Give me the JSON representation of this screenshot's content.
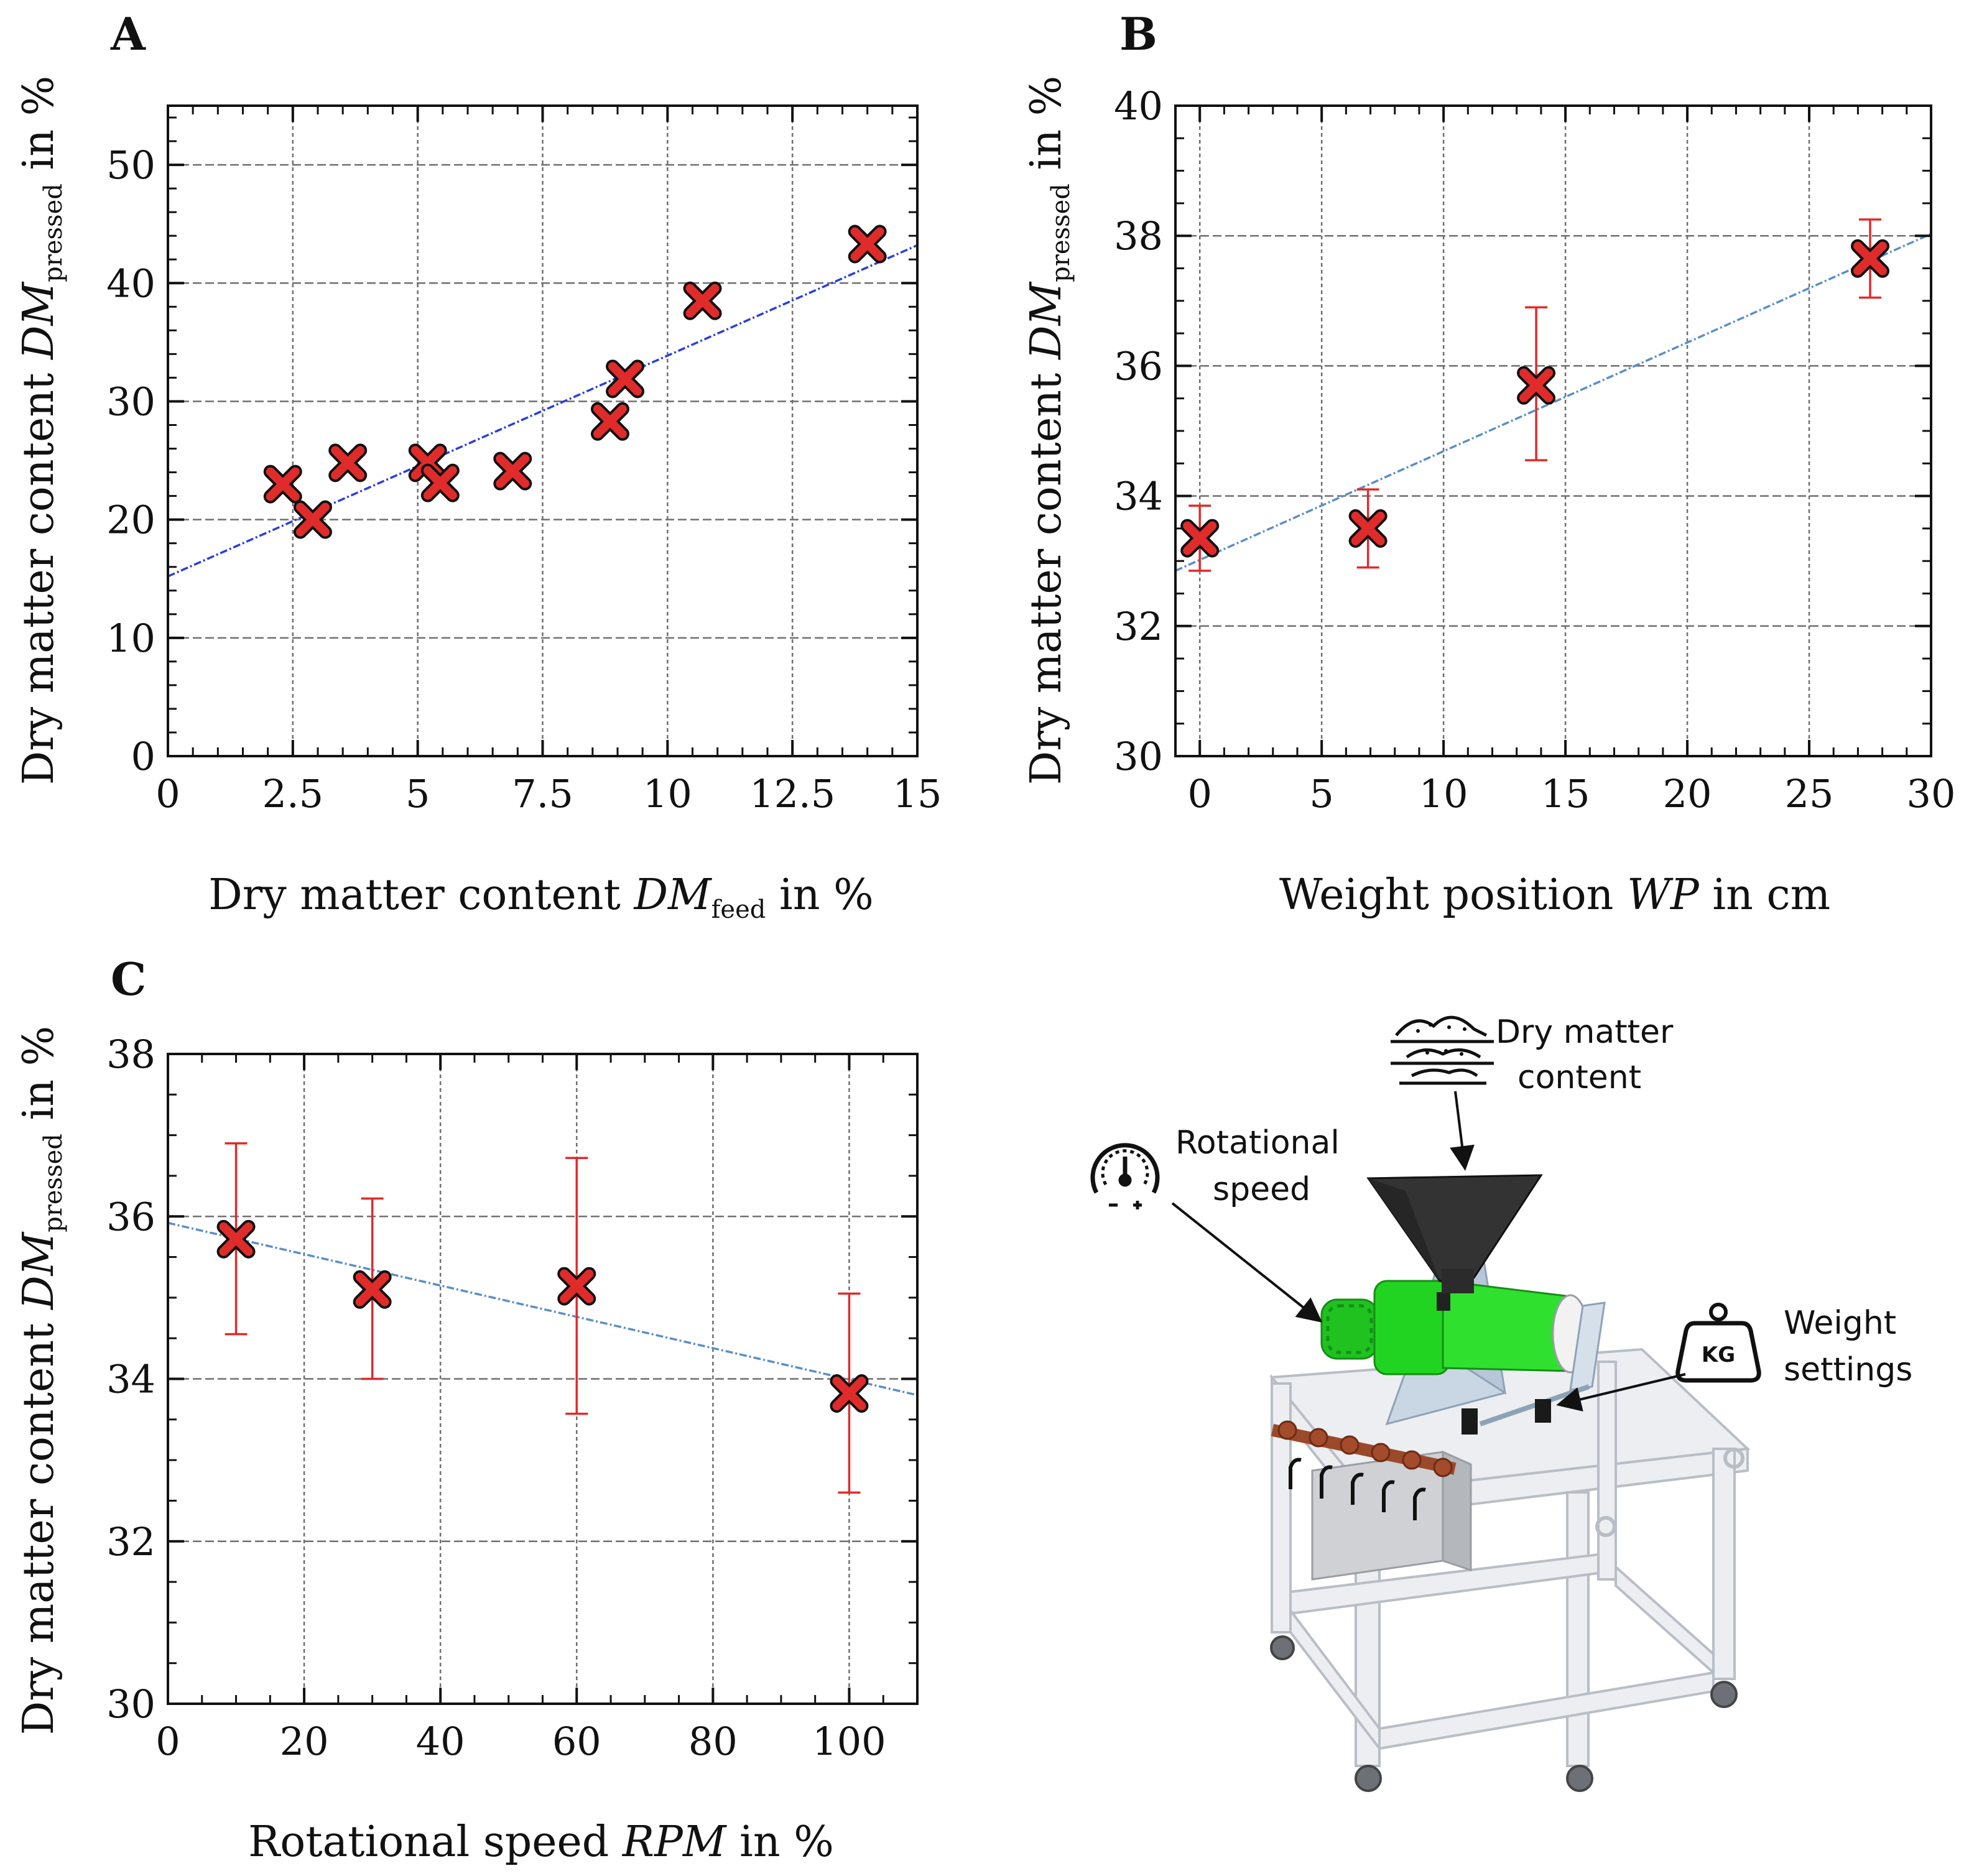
{
  "chart_data": [
    {
      "panel_label": "A",
      "type": "scatter",
      "xlabel_main": "Dry matter content ",
      "xlabel_var": "DM",
      "xlabel_sub": "feed",
      "xlabel_unit": " in %",
      "ylabel_main": "Dry matter content ",
      "ylabel_var": "DM",
      "ylabel_sub": "pressed",
      "ylabel_unit": " in %",
      "xlim": [
        0,
        15
      ],
      "ylim": [
        0,
        55
      ],
      "xticks": [
        0,
        2.5,
        5,
        7.5,
        10,
        12.5,
        15
      ],
      "xtick_labels": [
        "0",
        "2.5",
        "5",
        "7.5",
        "10",
        "12.5",
        "15"
      ],
      "yticks": [
        0,
        10,
        20,
        30,
        40,
        50
      ],
      "ytick_labels": [
        "0",
        "10",
        "20",
        "30",
        "40",
        "50"
      ],
      "x_minor_step": 0.5,
      "y_minor_step": 2,
      "grid": true,
      "points": [
        {
          "x": 2.3,
          "y": 23.0
        },
        {
          "x": 2.9,
          "y": 20.0
        },
        {
          "x": 3.6,
          "y": 24.8
        },
        {
          "x": 5.2,
          "y": 24.8
        },
        {
          "x": 5.45,
          "y": 23.1
        },
        {
          "x": 6.9,
          "y": 24.1
        },
        {
          "x": 8.85,
          "y": 28.3
        },
        {
          "x": 9.15,
          "y": 31.9
        },
        {
          "x": 10.7,
          "y": 38.5
        },
        {
          "x": 14.0,
          "y": 43.3
        }
      ],
      "fit": {
        "x": [
          0,
          15
        ],
        "y": [
          15.2,
          43.2
        ],
        "color": "#2b3de0"
      },
      "marker_color": "#e02b2b"
    },
    {
      "panel_label": "B",
      "type": "scatter",
      "xlabel_main": "Weight position ",
      "xlabel_var": "WP",
      "xlabel_sub": "",
      "xlabel_unit": " in cm",
      "ylabel_main": "Dry matter content ",
      "ylabel_var": "DM",
      "ylabel_sub": "pressed",
      "ylabel_unit": " in %",
      "xlim": [
        -1,
        30
      ],
      "ylim": [
        30,
        40
      ],
      "xticks": [
        0,
        5,
        10,
        15,
        20,
        25,
        30
      ],
      "xtick_labels": [
        "0",
        "5",
        "10",
        "15",
        "20",
        "25",
        "30"
      ],
      "yticks": [
        30,
        32,
        34,
        36,
        38,
        40
      ],
      "ytick_labels": [
        "30",
        "32",
        "34",
        "36",
        "38",
        "40"
      ],
      "x_minor_step": 1,
      "y_minor_step": 0.5,
      "grid": true,
      "points": [
        {
          "x": 0,
          "y": 33.35,
          "err_low": 32.85,
          "err_high": 33.85
        },
        {
          "x": 6.9,
          "y": 33.5,
          "err_low": 32.9,
          "err_high": 34.1
        },
        {
          "x": 13.8,
          "y": 35.7,
          "err_low": 34.55,
          "err_high": 36.9
        },
        {
          "x": 27.5,
          "y": 37.65,
          "err_low": 37.05,
          "err_high": 38.25
        }
      ],
      "fit": {
        "x": [
          -1,
          30
        ],
        "y": [
          32.85,
          38.03
        ],
        "color": "#5a8fc6"
      },
      "marker_color": "#e02b2b"
    },
    {
      "panel_label": "C",
      "type": "scatter",
      "xlabel_main": "Rotational speed ",
      "xlabel_var": "RPM",
      "xlabel_sub": "",
      "xlabel_unit": " in %",
      "ylabel_main": "Dry matter content ",
      "ylabel_var": "DM",
      "ylabel_sub": "pressed",
      "ylabel_unit": " in %",
      "xlim": [
        0,
        110
      ],
      "ylim": [
        30,
        38
      ],
      "xticks": [
        0,
        20,
        40,
        60,
        80,
        100
      ],
      "xtick_labels": [
        "0",
        "20",
        "40",
        "60",
        "80",
        "100"
      ],
      "yticks": [
        30,
        32,
        34,
        36,
        38
      ],
      "ytick_labels": [
        "30",
        "32",
        "34",
        "36",
        "38"
      ],
      "x_minor_step": 5,
      "y_minor_step": 0.5,
      "grid": true,
      "points": [
        {
          "x": 10,
          "y": 35.72,
          "err_low": 34.55,
          "err_high": 36.9
        },
        {
          "x": 30,
          "y": 35.1,
          "err_low": 34.0,
          "err_high": 36.22
        },
        {
          "x": 60,
          "y": 35.14,
          "err_low": 33.57,
          "err_high": 36.72
        },
        {
          "x": 100,
          "y": 33.82,
          "err_low": 32.6,
          "err_high": 35.05
        }
      ],
      "fit": {
        "x": [
          0,
          110
        ],
        "y": [
          35.92,
          33.8
        ],
        "color": "#5a8fc6"
      },
      "marker_color": "#e02b2b"
    }
  ],
  "illustration": {
    "dry_matter_label_1": "Dry matter",
    "dry_matter_label_2": "content",
    "rotational_label_1": "Rotational",
    "rotational_label_2": "speed",
    "weight_label_1": "Weight",
    "weight_label_2": "settings",
    "weight_icon_text": "KG",
    "machine_color": "#22e022"
  }
}
